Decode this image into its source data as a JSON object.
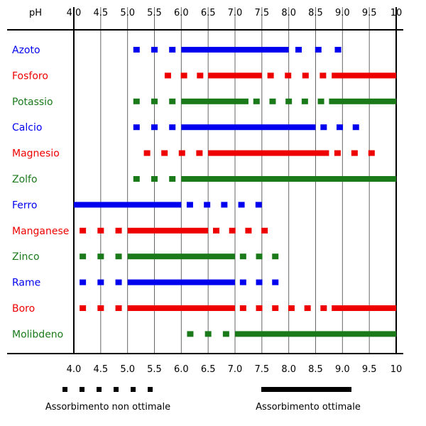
{
  "chart_data": {
    "type": "range-bar",
    "ph_label": "pH",
    "ticks": [
      "4.0",
      "4.5",
      "5.0",
      "5.5",
      "6.0",
      "6.5",
      "7.0",
      "7.5",
      "8.0",
      "8.5",
      "9.0",
      "9.5",
      "10"
    ],
    "xlim": [
      4.0,
      10.0
    ],
    "legend": {
      "non_optimal": "Assorbimento non ottimale",
      "optimal": "Assorbimento ottimale"
    },
    "nutrients": [
      {
        "name": "Azoto",
        "color": "#0000ee",
        "optimal": [
          [
            6.0,
            8.0
          ]
        ],
        "non_optimal": [
          [
            5.0,
            6.0
          ],
          [
            8.0,
            9.1
          ]
        ]
      },
      {
        "name": "Fosforo",
        "color": "#ee0000",
        "optimal": [
          [
            6.5,
            7.5
          ],
          [
            8.8,
            10.0
          ]
        ],
        "non_optimal": [
          [
            5.6,
            6.5
          ],
          [
            7.5,
            8.8
          ]
        ]
      },
      {
        "name": "Potassio",
        "color": "#1a7a1a",
        "optimal": [
          [
            6.0,
            7.25
          ],
          [
            8.75,
            10.0
          ]
        ],
        "non_optimal": [
          [
            5.0,
            6.0
          ],
          [
            7.25,
            8.75
          ]
        ]
      },
      {
        "name": "Calcio",
        "color": "#0000ee",
        "optimal": [
          [
            6.0,
            8.5
          ]
        ],
        "non_optimal": [
          [
            5.0,
            6.0
          ],
          [
            8.5,
            9.4
          ]
        ]
      },
      {
        "name": "Magnesio",
        "color": "#ee0000",
        "optimal": [
          [
            6.5,
            8.75
          ]
        ],
        "non_optimal": [
          [
            5.2,
            6.5
          ],
          [
            8.75,
            9.7
          ]
        ]
      },
      {
        "name": "Zolfo",
        "color": "#1a7a1a",
        "optimal": [
          [
            6.0,
            10.0
          ]
        ],
        "non_optimal": [
          [
            5.0,
            6.0
          ]
        ]
      },
      {
        "name": "Ferro",
        "color": "#0000ee",
        "optimal": [
          [
            4.0,
            6.0
          ]
        ],
        "non_optimal": [
          [
            6.0,
            7.6
          ]
        ]
      },
      {
        "name": "Manganese",
        "color": "#ee0000",
        "optimal": [
          [
            5.0,
            6.5
          ]
        ],
        "non_optimal": [
          [
            4.0,
            5.0
          ],
          [
            6.5,
            7.7
          ]
        ]
      },
      {
        "name": "Zinco",
        "color": "#1a7a1a",
        "optimal": [
          [
            5.0,
            7.0
          ]
        ],
        "non_optimal": [
          [
            4.0,
            5.0
          ],
          [
            7.0,
            7.9
          ]
        ]
      },
      {
        "name": "Rame",
        "color": "#0000ee",
        "optimal": [
          [
            5.0,
            7.0
          ]
        ],
        "non_optimal": [
          [
            4.0,
            5.0
          ],
          [
            7.0,
            7.9
          ]
        ]
      },
      {
        "name": "Boro",
        "color": "#ee0000",
        "optimal": [
          [
            5.0,
            7.0
          ],
          [
            8.8,
            10.0
          ]
        ],
        "non_optimal": [
          [
            4.0,
            5.0
          ],
          [
            7.0,
            8.8
          ]
        ]
      },
      {
        "name": "Molibdeno",
        "color": "#1a7a1a",
        "optimal": [
          [
            7.0,
            10.0
          ]
        ],
        "non_optimal": [
          [
            6.0,
            7.0
          ]
        ]
      }
    ]
  }
}
